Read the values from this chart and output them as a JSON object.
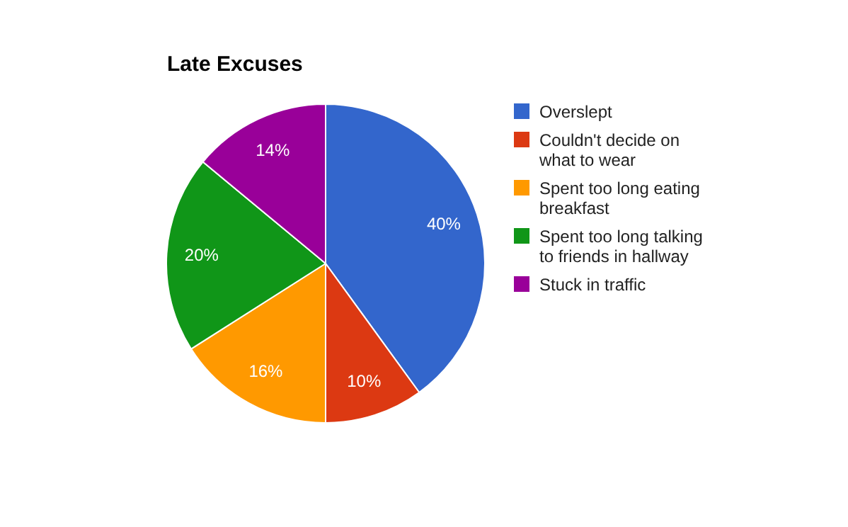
{
  "chart_data": {
    "type": "pie",
    "title": "Late Excuses",
    "categories": [
      "Overslept",
      "Couldn't decide on what to wear",
      "Spent too long eating breakfast",
      "Spent too long talking to friends in hallway",
      "Stuck in traffic"
    ],
    "values": [
      40,
      10,
      16,
      20,
      14
    ],
    "colors": [
      "#3366cc",
      "#dc3912",
      "#ff9900",
      "#109618",
      "#990099"
    ],
    "value_labels": [
      "40%",
      "10%",
      "16%",
      "20%",
      "14%"
    ],
    "legend": "right"
  }
}
